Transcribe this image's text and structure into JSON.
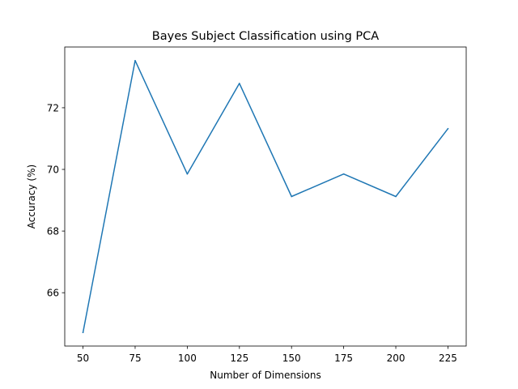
{
  "chart_data": {
    "type": "line",
    "title": "Bayes Subject Classification using PCA",
    "xlabel": "Number of Dimensions",
    "ylabel": "Accuracy (%)",
    "x": [
      50,
      75,
      100,
      125,
      150,
      175,
      200,
      225
    ],
    "series": [
      {
        "values": [
          64.71,
          73.53,
          69.85,
          72.79,
          69.12,
          69.85,
          69.12,
          71.32
        ],
        "color": "#1f77b4"
      }
    ],
    "xticks": [
      50,
      75,
      100,
      125,
      150,
      175,
      200,
      225
    ],
    "yticks": [
      66,
      68,
      70,
      72
    ],
    "xlim": [
      41.25,
      233.75
    ],
    "ylim": [
      64.27,
      73.97
    ],
    "grid": false,
    "legend": "none"
  }
}
